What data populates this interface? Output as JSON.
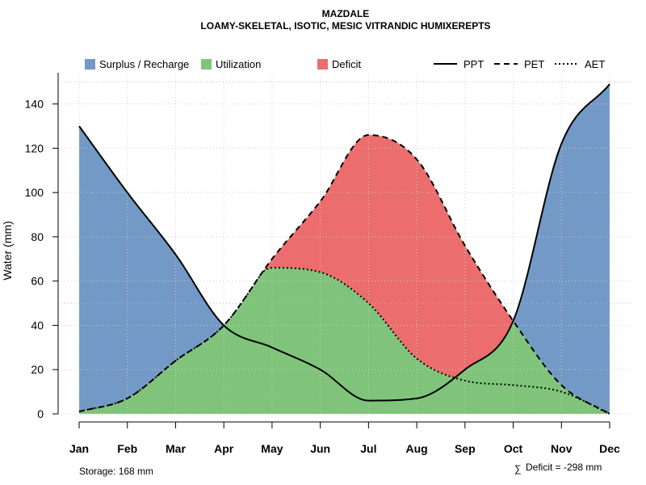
{
  "chart_data": {
    "type": "area",
    "title": "MAZDALE",
    "subtitle": "LOAMY-SKELETAL, ISOTIC, MESIC VITRANDIC HUMIXEREPTS",
    "xlabel": "",
    "ylabel": "Water (mm)",
    "ylim": [
      0,
      150
    ],
    "yticks": [
      "0",
      "20",
      "40",
      "60",
      "80",
      "100",
      "120",
      "140"
    ],
    "categories": [
      "Jan",
      "Feb",
      "Mar",
      "Apr",
      "May",
      "Jun",
      "Jul",
      "Aug",
      "Sep",
      "Oct",
      "Nov",
      "Dec"
    ],
    "series": [
      {
        "name": "PPT",
        "values": [
          130,
          100,
          72,
          40,
          30,
          20,
          6,
          7,
          20,
          42,
          122,
          149
        ]
      },
      {
        "name": "PET",
        "values": [
          1,
          7,
          24,
          40,
          70,
          96,
          126,
          115,
          76,
          42,
          13,
          0
        ]
      },
      {
        "name": "AET",
        "values": [
          1,
          7,
          24,
          40,
          66,
          64,
          50,
          25,
          15,
          13,
          10,
          0
        ]
      }
    ],
    "fills": [
      {
        "name": "Surplus / Recharge",
        "color": "#7399C6"
      },
      {
        "name": "Utilization",
        "color": "#7FC47A"
      },
      {
        "name": "Deficit",
        "color": "#EB6D6D"
      }
    ],
    "legend_position": "top",
    "storage_text": "Storage: 168 mm",
    "deficit_symbol": "∑",
    "deficit_text": "Deficit = -298 mm"
  }
}
